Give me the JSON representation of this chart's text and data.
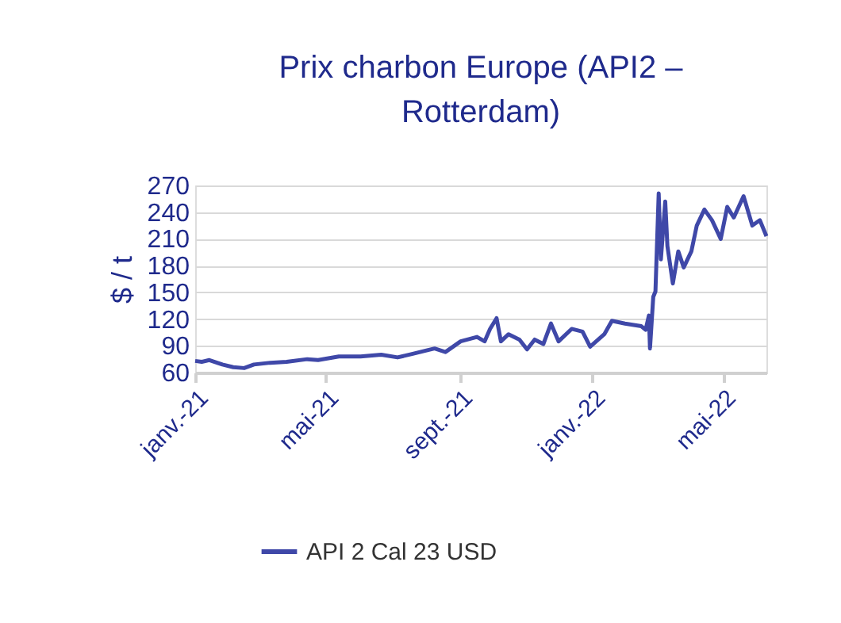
{
  "chart_data": {
    "type": "line",
    "title": "Prix charbon Europe (API2 – Rotterdam)",
    "ylabel": "$ / t",
    "x": [
      "2021-01-01",
      "2021-01-07",
      "2021-01-14",
      "2021-01-26",
      "2021-02-05",
      "2021-02-15",
      "2021-02-24",
      "2021-03-11",
      "2021-03-26",
      "2021-04-14",
      "2021-04-24",
      "2021-05-13",
      "2021-06-02",
      "2021-06-21",
      "2021-07-06",
      "2021-07-20",
      "2021-08-09",
      "2021-08-19",
      "2021-09-02",
      "2021-09-17",
      "2021-09-24",
      "2021-09-29",
      "2021-10-05",
      "2021-10-09",
      "2021-10-16",
      "2021-10-26",
      "2021-11-02",
      "2021-11-09",
      "2021-11-17",
      "2021-11-24",
      "2021-12-01",
      "2021-12-13",
      "2021-12-23",
      "2021-12-30",
      "2022-01-12",
      "2022-01-19",
      "2022-01-31",
      "2022-02-15",
      "2022-02-19",
      "2022-02-22",
      "2022-02-23",
      "2022-02-26",
      "2022-02-28",
      "2022-03-03",
      "2022-03-05",
      "2022-03-09",
      "2022-03-11",
      "2022-03-16",
      "2022-03-21",
      "2022-03-26",
      "2022-04-02",
      "2022-04-07",
      "2022-04-14",
      "2022-04-21",
      "2022-04-29",
      "2022-05-05",
      "2022-05-11",
      "2022-05-20",
      "2022-05-28",
      "2022-06-04",
      "2022-06-10"
    ],
    "series": [
      {
        "name": "API 2 Cal 23 USD",
        "color": "#3f48a8",
        "values": [
          73,
          72,
          74,
          69,
          66,
          65,
          69,
          71,
          72,
          75,
          74,
          78,
          78,
          80,
          77,
          81,
          87,
          83,
          95,
          100,
          95,
          109,
          121,
          95,
          103,
          97,
          86,
          97,
          92,
          115,
          95,
          109,
          106,
          89,
          103,
          118,
          115,
          112,
          108,
          124,
          87,
          145,
          151,
          261,
          187,
          252,
          202,
          160,
          196,
          178,
          196,
          225,
          243,
          231,
          210,
          246,
          234,
          258,
          225,
          231,
          213
        ]
      }
    ],
    "xlim": [
      "2021-01-01",
      "2022-06-10"
    ],
    "xticks": [
      {
        "value": "2021-01-01",
        "label": "janv.-21"
      },
      {
        "value": "2021-05-01",
        "label": "mai-21"
      },
      {
        "value": "2021-09-01",
        "label": "sept.-21"
      },
      {
        "value": "2022-01-01",
        "label": "janv.-22"
      },
      {
        "value": "2022-05-01",
        "label": "mai-22"
      }
    ],
    "ylim": [
      60,
      270
    ],
    "yticks": [
      60,
      90,
      120,
      150,
      180,
      210,
      240,
      270
    ],
    "grid": "y",
    "legend": "bottom",
    "marker": "none",
    "line_style": "solid"
  }
}
